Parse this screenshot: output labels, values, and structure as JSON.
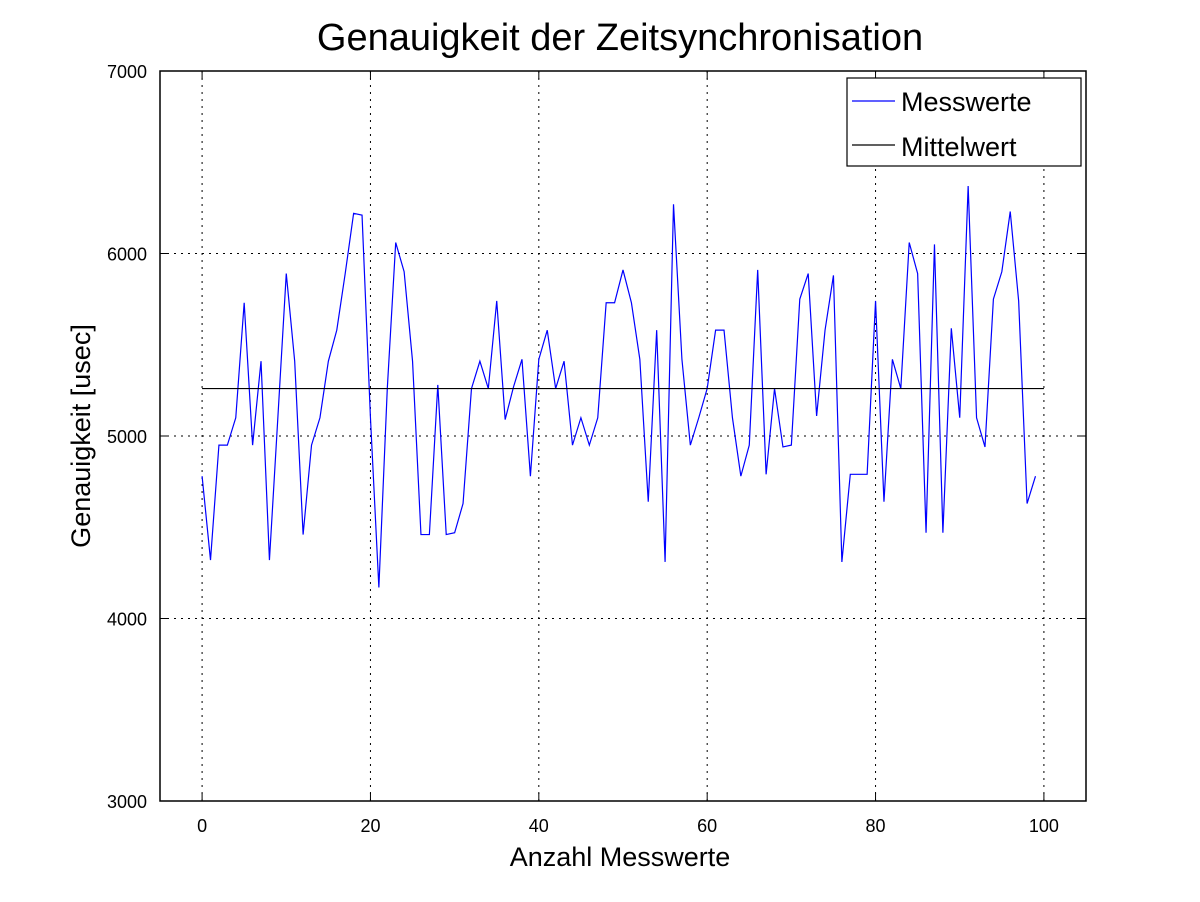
{
  "chart_data": {
    "type": "line",
    "title": "Genauigkeit der Zeitsynchronisation",
    "xlabel": "Anzahl Messwerte",
    "ylabel": "Genauigkeit [usec]",
    "xlim": [
      -5,
      105
    ],
    "ylim": [
      3000,
      7000
    ],
    "xticks": [
      0,
      20,
      40,
      60,
      80,
      100
    ],
    "yticks": [
      3000,
      4000,
      5000,
      6000,
      7000
    ],
    "xtick_labels": [
      "0",
      "20",
      "40",
      "60",
      "80",
      "100"
    ],
    "ytick_labels": [
      "3000",
      "4000",
      "5000",
      "6000",
      "7000"
    ],
    "grid": true,
    "legend_position": "top-right",
    "series": [
      {
        "name": "Messwerte",
        "color": "#0000ff",
        "x": [
          0,
          1,
          2,
          3,
          4,
          5,
          6,
          7,
          8,
          9,
          10,
          11,
          12,
          13,
          14,
          15,
          16,
          17,
          18,
          19,
          20,
          21,
          22,
          23,
          24,
          25,
          26,
          27,
          28,
          29,
          30,
          31,
          32,
          33,
          34,
          35,
          36,
          37,
          38,
          39,
          40,
          41,
          42,
          43,
          44,
          45,
          46,
          47,
          48,
          49,
          50,
          51,
          52,
          53,
          54,
          55,
          56,
          57,
          58,
          59,
          60,
          61,
          62,
          63,
          64,
          65,
          66,
          67,
          68,
          69,
          70,
          71,
          72,
          73,
          74,
          75,
          76,
          77,
          78,
          79,
          80,
          81,
          82,
          83,
          84,
          85,
          86,
          87,
          88,
          89,
          90,
          91,
          92,
          93,
          94,
          95,
          96,
          97,
          98,
          99
        ],
        "y": [
          4780,
          4320,
          4950,
          4950,
          5100,
          5730,
          4950,
          5410,
          4320,
          5100,
          5890,
          5410,
          4460,
          4950,
          5100,
          5410,
          5580,
          5890,
          6220,
          6210,
          5100,
          4170,
          5260,
          6060,
          5900,
          5410,
          4460,
          4460,
          5280,
          4460,
          4470,
          4630,
          5260,
          5410,
          5260,
          5740,
          5090,
          5270,
          5420,
          4780,
          5420,
          5580,
          5260,
          5410,
          4950,
          5100,
          4950,
          5100,
          5730,
          5730,
          5910,
          5730,
          5420,
          4640,
          5580,
          4310,
          6270,
          5420,
          4950,
          5100,
          5260,
          5580,
          5580,
          5100,
          4780,
          4950,
          5910,
          4790,
          5260,
          4940,
          4950,
          5750,
          5890,
          5110,
          5580,
          5880,
          4310,
          4790,
          4790,
          4790,
          5740,
          4640,
          5420,
          5260,
          6060,
          5890,
          4470,
          6050,
          4470,
          5590,
          5100,
          6370,
          5100,
          4940,
          5750,
          5900,
          6230,
          5740,
          4630,
          4780
        ]
      },
      {
        "name": "Mittelwert",
        "color": "#000000",
        "x": [
          0,
          100
        ],
        "y": [
          5260,
          5260
        ]
      }
    ]
  }
}
